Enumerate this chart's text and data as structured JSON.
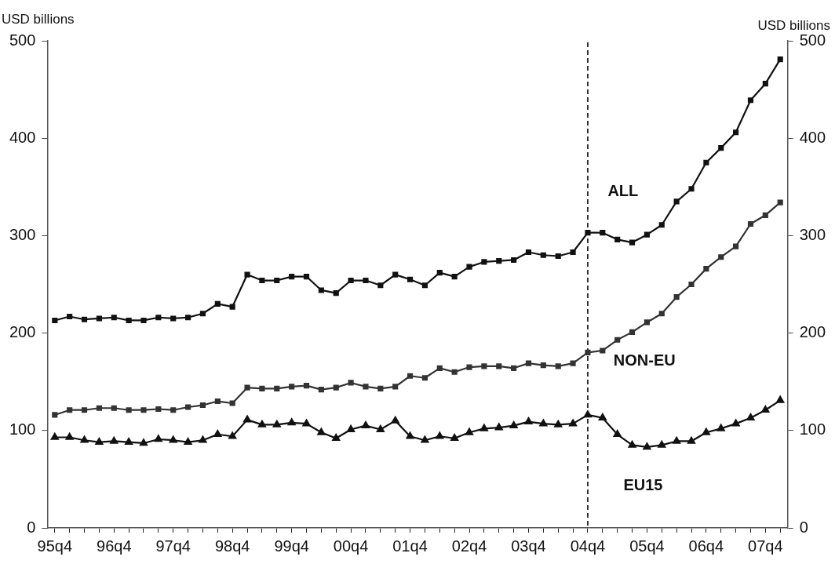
{
  "chart_data": {
    "type": "line",
    "ylabel": "USD billions",
    "y2label": "USD billions",
    "categories": [
      "95q4",
      null,
      null,
      null,
      "96q4",
      null,
      null,
      null,
      "97q4",
      null,
      null,
      null,
      "98q4",
      null,
      null,
      null,
      "99q4",
      null,
      null,
      null,
      "00q4",
      null,
      null,
      null,
      "01q4",
      null,
      null,
      null,
      "02q4",
      null,
      null,
      null,
      "03q4",
      null,
      null,
      null,
      "04q4",
      null,
      null,
      null,
      "05q4",
      null,
      null,
      null,
      "06q4",
      null,
      null,
      null,
      "07q4",
      null
    ],
    "series": [
      {
        "name": "ALL",
        "color": "#111111",
        "marker": "square",
        "values": [
          213,
          217,
          214,
          215,
          216,
          213,
          213,
          216,
          215,
          216,
          220,
          230,
          227,
          260,
          254,
          254,
          258,
          258,
          244,
          241,
          254,
          254,
          249,
          260,
          255,
          249,
          262,
          258,
          268,
          273,
          274,
          275,
          283,
          280,
          279,
          283,
          303,
          303,
          296,
          293,
          301,
          311,
          335,
          348,
          375,
          390,
          406,
          439,
          456,
          481
        ]
      },
      {
        "name": "NON-EU",
        "color": "#333333",
        "marker": "square",
        "values": [
          116,
          121,
          121,
          123,
          123,
          121,
          121,
          122,
          121,
          124,
          126,
          130,
          128,
          144,
          143,
          143,
          145,
          146,
          142,
          144,
          149,
          145,
          143,
          145,
          156,
          154,
          164,
          160,
          165,
          166,
          166,
          164,
          169,
          167,
          166,
          169,
          180,
          182,
          193,
          201,
          211,
          220,
          237,
          250,
          266,
          278,
          289,
          312,
          321,
          334
        ]
      },
      {
        "name": "EU15",
        "color": "#111111",
        "marker": "triangle",
        "values": [
          93,
          93,
          90,
          88,
          89,
          88,
          87,
          91,
          90,
          88,
          90,
          96,
          94,
          111,
          106,
          106,
          108,
          107,
          98,
          92,
          101,
          105,
          101,
          110,
          94,
          90,
          94,
          92,
          98,
          102,
          103,
          105,
          109,
          107,
          106,
          107,
          116,
          113,
          96,
          85,
          83,
          85,
          89,
          89,
          98,
          102,
          107,
          113,
          121,
          131
        ]
      }
    ],
    "ylim": [
      0,
      500
    ],
    "yticks": [
      0,
      100,
      200,
      300,
      400,
      500
    ],
    "y2lim": [
      0,
      500
    ],
    "y2ticks": [
      0,
      100,
      200,
      300,
      400,
      500
    ],
    "ref_lines": [
      {
        "axis": "x",
        "value": "04q4",
        "line_style": "dashed"
      }
    ],
    "grid": false,
    "legend": false,
    "line_style": "solid"
  }
}
